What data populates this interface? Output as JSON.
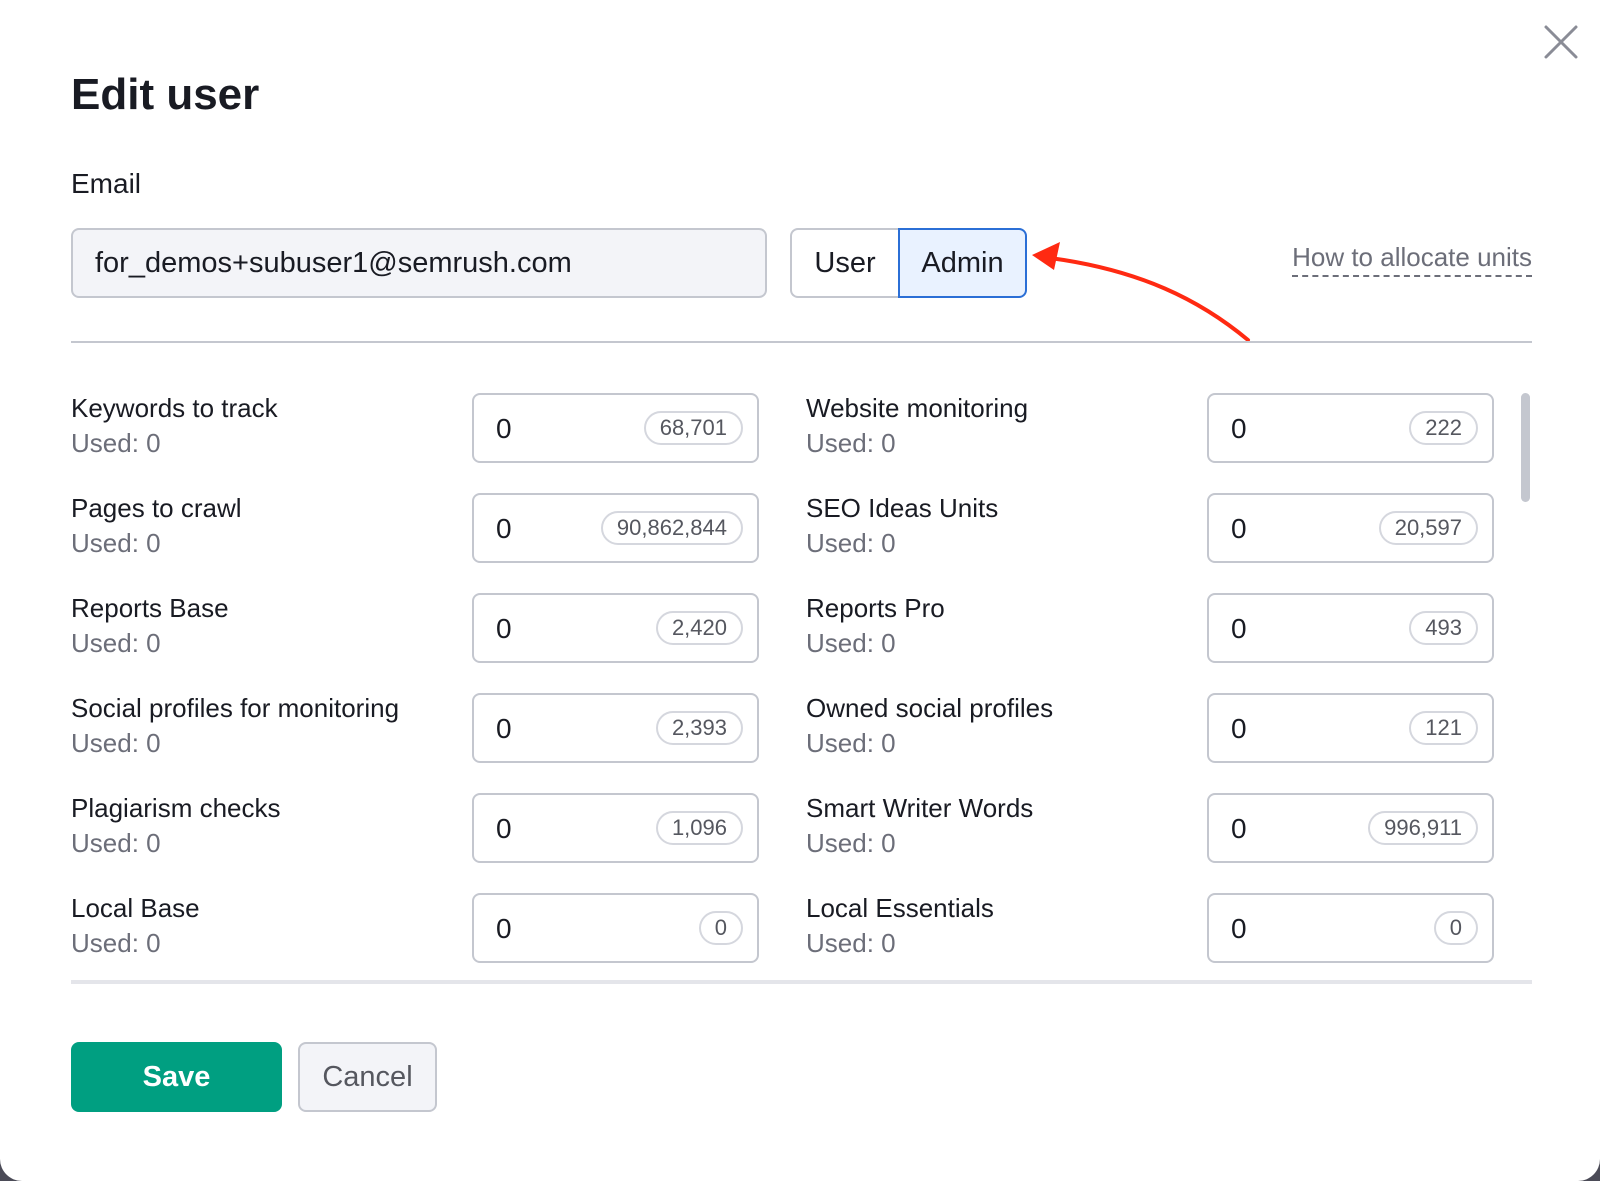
{
  "dialog": {
    "title": "Edit user",
    "email_label": "Email",
    "email_value": "for_demos+subuser1@semrush.com",
    "role_options": [
      "User",
      "Admin"
    ],
    "selected_role": "Admin",
    "help_link": "How to allocate units",
    "annotation_arrow_color": "#ff2a12",
    "fields": [
      {
        "label": "Keywords to track",
        "used": "Used: 0",
        "value": "0",
        "limit": "68,701"
      },
      {
        "label": "Website monitoring",
        "used": "Used: 0",
        "value": "0",
        "limit": "222"
      },
      {
        "label": "Pages to crawl",
        "used": "Used: 0",
        "value": "0",
        "limit": "90,862,844"
      },
      {
        "label": "SEO Ideas Units",
        "used": "Used: 0",
        "value": "0",
        "limit": "20,597"
      },
      {
        "label": "Reports Base",
        "used": "Used: 0",
        "value": "0",
        "limit": "2,420"
      },
      {
        "label": "Reports Pro",
        "used": "Used: 0",
        "value": "0",
        "limit": "493"
      },
      {
        "label": "Social profiles for monitoring",
        "used": "Used: 0",
        "value": "0",
        "limit": "2,393"
      },
      {
        "label": "Owned social profiles",
        "used": "Used: 0",
        "value": "0",
        "limit": "121"
      },
      {
        "label": "Plagiarism checks",
        "used": "Used: 0",
        "value": "0",
        "limit": "1,096"
      },
      {
        "label": "Smart Writer Words",
        "used": "Used: 0",
        "value": "0",
        "limit": "996,911"
      },
      {
        "label": "Local Base",
        "used": "Used: 0",
        "value": "0",
        "limit": "0"
      },
      {
        "label": "Local Essentials",
        "used": "Used: 0",
        "value": "0",
        "limit": "0"
      }
    ],
    "save_label": "Save",
    "cancel_label": "Cancel",
    "colors": {
      "primary": "#009f81",
      "selected_border": "#2b6fd6",
      "selected_bg": "#e9f2ff"
    }
  }
}
